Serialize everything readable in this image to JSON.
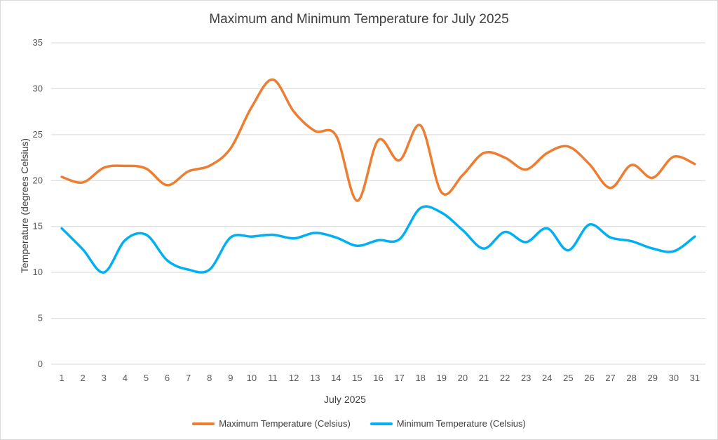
{
  "chart_data": {
    "type": "line",
    "title": "Maximum and Minimum Temperature for July 2025",
    "xlabel": "July 2025",
    "ylabel": "Temperature (degrees Celsius)",
    "ylim": [
      0,
      35
    ],
    "yticks": [
      0,
      5,
      10,
      15,
      20,
      25,
      30,
      35
    ],
    "grid": true,
    "legend_position": "bottom",
    "categories": [
      "1",
      "2",
      "3",
      "4",
      "5",
      "6",
      "7",
      "8",
      "9",
      "10",
      "11",
      "12",
      "13",
      "14",
      "15",
      "16",
      "17",
      "18",
      "19",
      "20",
      "21",
      "22",
      "23",
      "24",
      "25",
      "26",
      "27",
      "28",
      "29",
      "30",
      "31"
    ],
    "series": [
      {
        "name": "Maximum Temperature (Celsius)",
        "color": "#ed7d31",
        "values": [
          20.4,
          19.8,
          21.4,
          21.6,
          21.3,
          19.5,
          21.0,
          21.6,
          23.5,
          28.0,
          31.0,
          27.5,
          25.4,
          24.9,
          17.8,
          24.4,
          22.2,
          26.0,
          18.7,
          20.6,
          23.0,
          22.5,
          21.2,
          23.0,
          23.7,
          21.8,
          19.2,
          21.7,
          20.3,
          22.6,
          21.8
        ]
      },
      {
        "name": "Minimum Temperature (Celsius)",
        "color": "#00b0f0",
        "values": [
          14.8,
          12.5,
          10.0,
          13.5,
          14.1,
          11.3,
          10.3,
          10.3,
          13.8,
          13.9,
          14.1,
          13.7,
          14.3,
          13.8,
          12.9,
          13.5,
          13.6,
          17.0,
          16.5,
          14.6,
          12.6,
          14.4,
          13.3,
          14.8,
          12.4,
          15.2,
          13.8,
          13.4,
          12.6,
          12.3,
          13.9
        ]
      }
    ]
  }
}
